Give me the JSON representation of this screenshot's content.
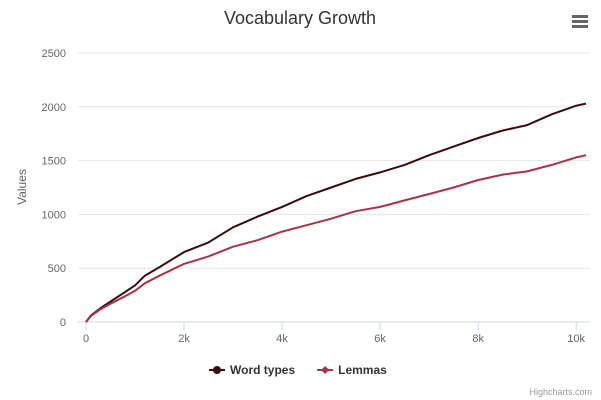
{
  "chart_data": {
    "type": "line",
    "title": "Vocabulary Growth",
    "ylabel": "Values",
    "xlabel": "",
    "xlim": [
      0,
      10200
    ],
    "ylim": [
      0,
      2500
    ],
    "x_ticks": [
      0,
      2000,
      4000,
      6000,
      8000,
      10000
    ],
    "x_tick_labels": [
      "0",
      "2k",
      "4k",
      "6k",
      "8k",
      "10k"
    ],
    "y_ticks": [
      0,
      500,
      1000,
      1500,
      2000,
      2500
    ],
    "y_tick_labels": [
      "0",
      "500",
      "1000",
      "1500",
      "2000",
      "2500"
    ],
    "grid": true,
    "legend_position": "bottom-center",
    "series": [
      {
        "name": "Word types",
        "color": "#3b0a10",
        "marker": "circle",
        "points": [
          [
            0,
            0
          ],
          [
            100,
            60
          ],
          [
            300,
            130
          ],
          [
            500,
            190
          ],
          [
            800,
            280
          ],
          [
            1000,
            340
          ],
          [
            1200,
            430
          ],
          [
            1500,
            510
          ],
          [
            2000,
            650
          ],
          [
            2500,
            740
          ],
          [
            3000,
            880
          ],
          [
            3500,
            980
          ],
          [
            4000,
            1070
          ],
          [
            4500,
            1170
          ],
          [
            5000,
            1250
          ],
          [
            5500,
            1330
          ],
          [
            6000,
            1390
          ],
          [
            6500,
            1460
          ],
          [
            7000,
            1550
          ],
          [
            7500,
            1630
          ],
          [
            8000,
            1710
          ],
          [
            8500,
            1780
          ],
          [
            9000,
            1830
          ],
          [
            9500,
            1930
          ],
          [
            10000,
            2010
          ],
          [
            10200,
            2030
          ]
        ]
      },
      {
        "name": "Lemmas",
        "color": "#a8324a",
        "marker": "diamond",
        "points": [
          [
            0,
            0
          ],
          [
            100,
            55
          ],
          [
            300,
            120
          ],
          [
            500,
            170
          ],
          [
            800,
            240
          ],
          [
            1000,
            290
          ],
          [
            1200,
            360
          ],
          [
            1500,
            430
          ],
          [
            2000,
            540
          ],
          [
            2500,
            610
          ],
          [
            3000,
            700
          ],
          [
            3500,
            760
          ],
          [
            4000,
            840
          ],
          [
            4500,
            900
          ],
          [
            5000,
            960
          ],
          [
            5500,
            1030
          ],
          [
            6000,
            1070
          ],
          [
            6500,
            1130
          ],
          [
            7000,
            1190
          ],
          [
            7500,
            1250
          ],
          [
            8000,
            1320
          ],
          [
            8500,
            1370
          ],
          [
            9000,
            1400
          ],
          [
            9500,
            1460
          ],
          [
            10000,
            1530
          ],
          [
            10200,
            1550
          ]
        ]
      }
    ]
  },
  "credits": "Highcharts.com",
  "menu_icon": "hamburger-menu-icon"
}
